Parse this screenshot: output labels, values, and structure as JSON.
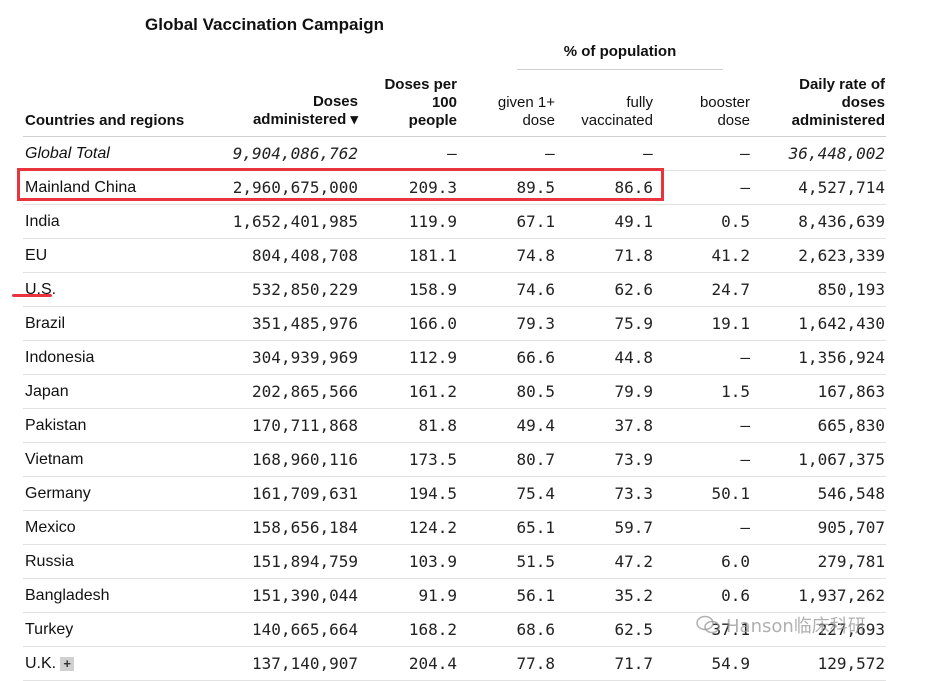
{
  "title": "Global Vaccination Campaign",
  "header": {
    "pct_group": "% of population",
    "country": "Countries and regions",
    "doses_line1": "Doses",
    "doses_line2": "administered ▾",
    "per100_line1": "Doses per",
    "per100_line2": "100",
    "per100_line3": "people",
    "given_line1": "given 1+",
    "given_line2": "dose",
    "fully_line1": "fully",
    "fully_line2": "vaccinated",
    "booster_line1": "booster",
    "booster_line2": "dose",
    "daily_line1": "Daily rate of",
    "daily_line2": "doses",
    "daily_line3": "administered"
  },
  "rows": [
    {
      "name": "Global Total",
      "doses": "9,904,086,762",
      "per100": "–",
      "given": "–",
      "fully": "–",
      "booster": "–",
      "daily": "36,448,002"
    },
    {
      "name": "Mainland China",
      "doses": "2,960,675,000",
      "per100": "209.3",
      "given": "89.5",
      "fully": "86.6",
      "booster": "–",
      "daily": "4,527,714"
    },
    {
      "name": "India",
      "doses": "1,652,401,985",
      "per100": "119.9",
      "given": "67.1",
      "fully": "49.1",
      "booster": "0.5",
      "daily": "8,436,639"
    },
    {
      "name": "EU",
      "doses": "804,408,708",
      "per100": "181.1",
      "given": "74.8",
      "fully": "71.8",
      "booster": "41.2",
      "daily": "2,623,339"
    },
    {
      "name": "U.S.",
      "doses": "532,850,229",
      "per100": "158.9",
      "given": "74.6",
      "fully": "62.6",
      "booster": "24.7",
      "daily": "850,193"
    },
    {
      "name": "Brazil",
      "doses": "351,485,976",
      "per100": "166.0",
      "given": "79.3",
      "fully": "75.9",
      "booster": "19.1",
      "daily": "1,642,430"
    },
    {
      "name": "Indonesia",
      "doses": "304,939,969",
      "per100": "112.9",
      "given": "66.6",
      "fully": "44.8",
      "booster": "–",
      "daily": "1,356,924"
    },
    {
      "name": "Japan",
      "doses": "202,865,566",
      "per100": "161.2",
      "given": "80.5",
      "fully": "79.9",
      "booster": "1.5",
      "daily": "167,863"
    },
    {
      "name": "Pakistan",
      "doses": "170,711,868",
      "per100": "81.8",
      "given": "49.4",
      "fully": "37.8",
      "booster": "–",
      "daily": "665,830"
    },
    {
      "name": "Vietnam",
      "doses": "168,960,116",
      "per100": "173.5",
      "given": "80.7",
      "fully": "73.9",
      "booster": "–",
      "daily": "1,067,375"
    },
    {
      "name": "Germany",
      "doses": "161,709,631",
      "per100": "194.5",
      "given": "75.4",
      "fully": "73.3",
      "booster": "50.1",
      "daily": "546,548"
    },
    {
      "name": "Mexico",
      "doses": "158,656,184",
      "per100": "124.2",
      "given": "65.1",
      "fully": "59.7",
      "booster": "–",
      "daily": "905,707"
    },
    {
      "name": "Russia",
      "doses": "151,894,759",
      "per100": "103.9",
      "given": "51.5",
      "fully": "47.2",
      "booster": "6.0",
      "daily": "279,781"
    },
    {
      "name": "Bangladesh",
      "doses": "151,390,044",
      "per100": "91.9",
      "given": "56.1",
      "fully": "35.2",
      "booster": "0.6",
      "daily": "1,937,262"
    },
    {
      "name": "Turkey",
      "doses": "140,665,664",
      "per100": "168.2",
      "given": "68.6",
      "fully": "62.5",
      "booster": "37.1",
      "daily": "227,693"
    },
    {
      "name": "U.K.",
      "doses": "137,140,907",
      "per100": "204.4",
      "given": "77.8",
      "fully": "71.7",
      "booster": "54.9",
      "daily": "129,572"
    }
  ],
  "expand_icon": "+",
  "watermark": "Hanson临床科研",
  "colors": {
    "highlight": "#e8343c"
  }
}
